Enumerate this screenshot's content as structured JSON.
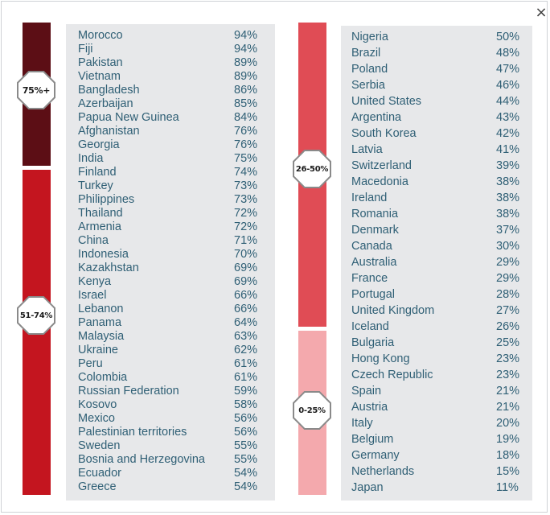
{
  "close_glyph": "×",
  "bands": [
    {
      "label": "75%+",
      "color": "#5c0e15"
    },
    {
      "label": "51-74%",
      "color": "#c4151f"
    },
    {
      "label": "26-50%",
      "color": "#e04c55"
    },
    {
      "label": "0-25%",
      "color": "#f4a9ad"
    }
  ],
  "left_list": [
    {
      "country": "Morocco",
      "pct": "94%"
    },
    {
      "country": "Fiji",
      "pct": "94%"
    },
    {
      "country": "Pakistan",
      "pct": "89%"
    },
    {
      "country": "Vietnam",
      "pct": "89%"
    },
    {
      "country": "Bangladesh",
      "pct": "86%"
    },
    {
      "country": "Azerbaijan",
      "pct": "85%"
    },
    {
      "country": "Papua New Guinea",
      "pct": "84%"
    },
    {
      "country": "Afghanistan",
      "pct": "76%"
    },
    {
      "country": "Georgia",
      "pct": "76%"
    },
    {
      "country": "India",
      "pct": "75%"
    },
    {
      "country": "Finland",
      "pct": "74%"
    },
    {
      "country": "Turkey",
      "pct": "73%"
    },
    {
      "country": "Philippines",
      "pct": "73%"
    },
    {
      "country": "Thailand",
      "pct": "72%"
    },
    {
      "country": "Armenia",
      "pct": "72%"
    },
    {
      "country": "China",
      "pct": "71%"
    },
    {
      "country": "Indonesia",
      "pct": "70%"
    },
    {
      "country": "Kazakhstan",
      "pct": "69%"
    },
    {
      "country": "Kenya",
      "pct": "69%"
    },
    {
      "country": "Israel",
      "pct": "66%"
    },
    {
      "country": "Lebanon",
      "pct": "66%"
    },
    {
      "country": "Panama",
      "pct": "64%"
    },
    {
      "country": "Malaysia",
      "pct": "63%"
    },
    {
      "country": "Ukraine",
      "pct": "62%"
    },
    {
      "country": "Peru",
      "pct": "61%"
    },
    {
      "country": "Colombia",
      "pct": "61%"
    },
    {
      "country": "Russian Federation",
      "pct": "59%"
    },
    {
      "country": "Kosovo",
      "pct": "58%"
    },
    {
      "country": "Mexico",
      "pct": "56%"
    },
    {
      "country": "Palestinian territories",
      "pct": "56%"
    },
    {
      "country": "Sweden",
      "pct": "55%"
    },
    {
      "country": "Bosnia and Herzegovina",
      "pct": "55%"
    },
    {
      "country": "Ecuador",
      "pct": "54%"
    },
    {
      "country": "Greece",
      "pct": "54%"
    }
  ],
  "right_list": [
    {
      "country": "Nigeria",
      "pct": "50%"
    },
    {
      "country": "Brazil",
      "pct": "48%"
    },
    {
      "country": "Poland",
      "pct": "47%"
    },
    {
      "country": "Serbia",
      "pct": "46%"
    },
    {
      "country": "United States",
      "pct": "44%"
    },
    {
      "country": "Argentina",
      "pct": "43%"
    },
    {
      "country": "South Korea",
      "pct": "42%"
    },
    {
      "country": "Latvia",
      "pct": "41%"
    },
    {
      "country": "Switzerland",
      "pct": "39%"
    },
    {
      "country": "Macedonia",
      "pct": "38%"
    },
    {
      "country": "Ireland",
      "pct": "38%"
    },
    {
      "country": "Romania",
      "pct": "38%"
    },
    {
      "country": "Denmark",
      "pct": "37%"
    },
    {
      "country": "Canada",
      "pct": "30%"
    },
    {
      "country": "Australia",
      "pct": "29%"
    },
    {
      "country": "France",
      "pct": "29%"
    },
    {
      "country": "Portugal",
      "pct": "28%"
    },
    {
      "country": "United Kingdom",
      "pct": "27%"
    },
    {
      "country": "Iceland",
      "pct": "26%"
    },
    {
      "country": "Bulgaria",
      "pct": "25%"
    },
    {
      "country": "Hong Kong",
      "pct": "23%"
    },
    {
      "country": "Czech Republic",
      "pct": "23%"
    },
    {
      "country": "Spain",
      "pct": "21%"
    },
    {
      "country": "Austria",
      "pct": "21%"
    },
    {
      "country": "Italy",
      "pct": "20%"
    },
    {
      "country": "Belgium",
      "pct": "19%"
    },
    {
      "country": "Germany",
      "pct": "18%"
    },
    {
      "country": "Netherlands",
      "pct": "15%"
    },
    {
      "country": "Japan",
      "pct": "11%"
    }
  ]
}
